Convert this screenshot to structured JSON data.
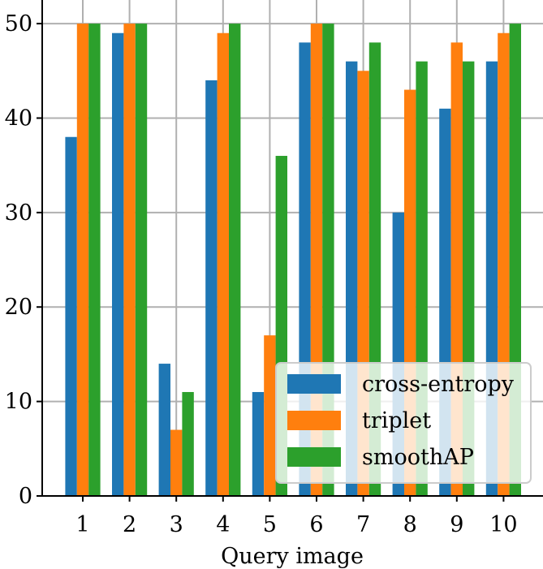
{
  "chart_data": {
    "type": "bar",
    "categories": [
      "1",
      "2",
      "3",
      "4",
      "5",
      "6",
      "7",
      "8",
      "9",
      "10"
    ],
    "series": [
      {
        "name": "cross-entropy",
        "color": "#1f77b4",
        "values": [
          38,
          49,
          14,
          44,
          11,
          48,
          46,
          30,
          41,
          46
        ]
      },
      {
        "name": "triplet",
        "color": "#ff7f0e",
        "values": [
          50,
          50,
          7,
          49,
          17,
          50,
          45,
          43,
          48,
          49
        ]
      },
      {
        "name": "smoothAP",
        "color": "#2ca02c",
        "values": [
          50,
          50,
          11,
          50,
          36,
          50,
          48,
          46,
          46,
          50
        ]
      }
    ],
    "xlabel": "Query image",
    "ylabel": "",
    "ylim": [
      0,
      52.5
    ],
    "yticks": [
      0,
      10,
      20,
      30,
      40,
      50
    ],
    "grid": true,
    "legend_position": "lower-right"
  }
}
